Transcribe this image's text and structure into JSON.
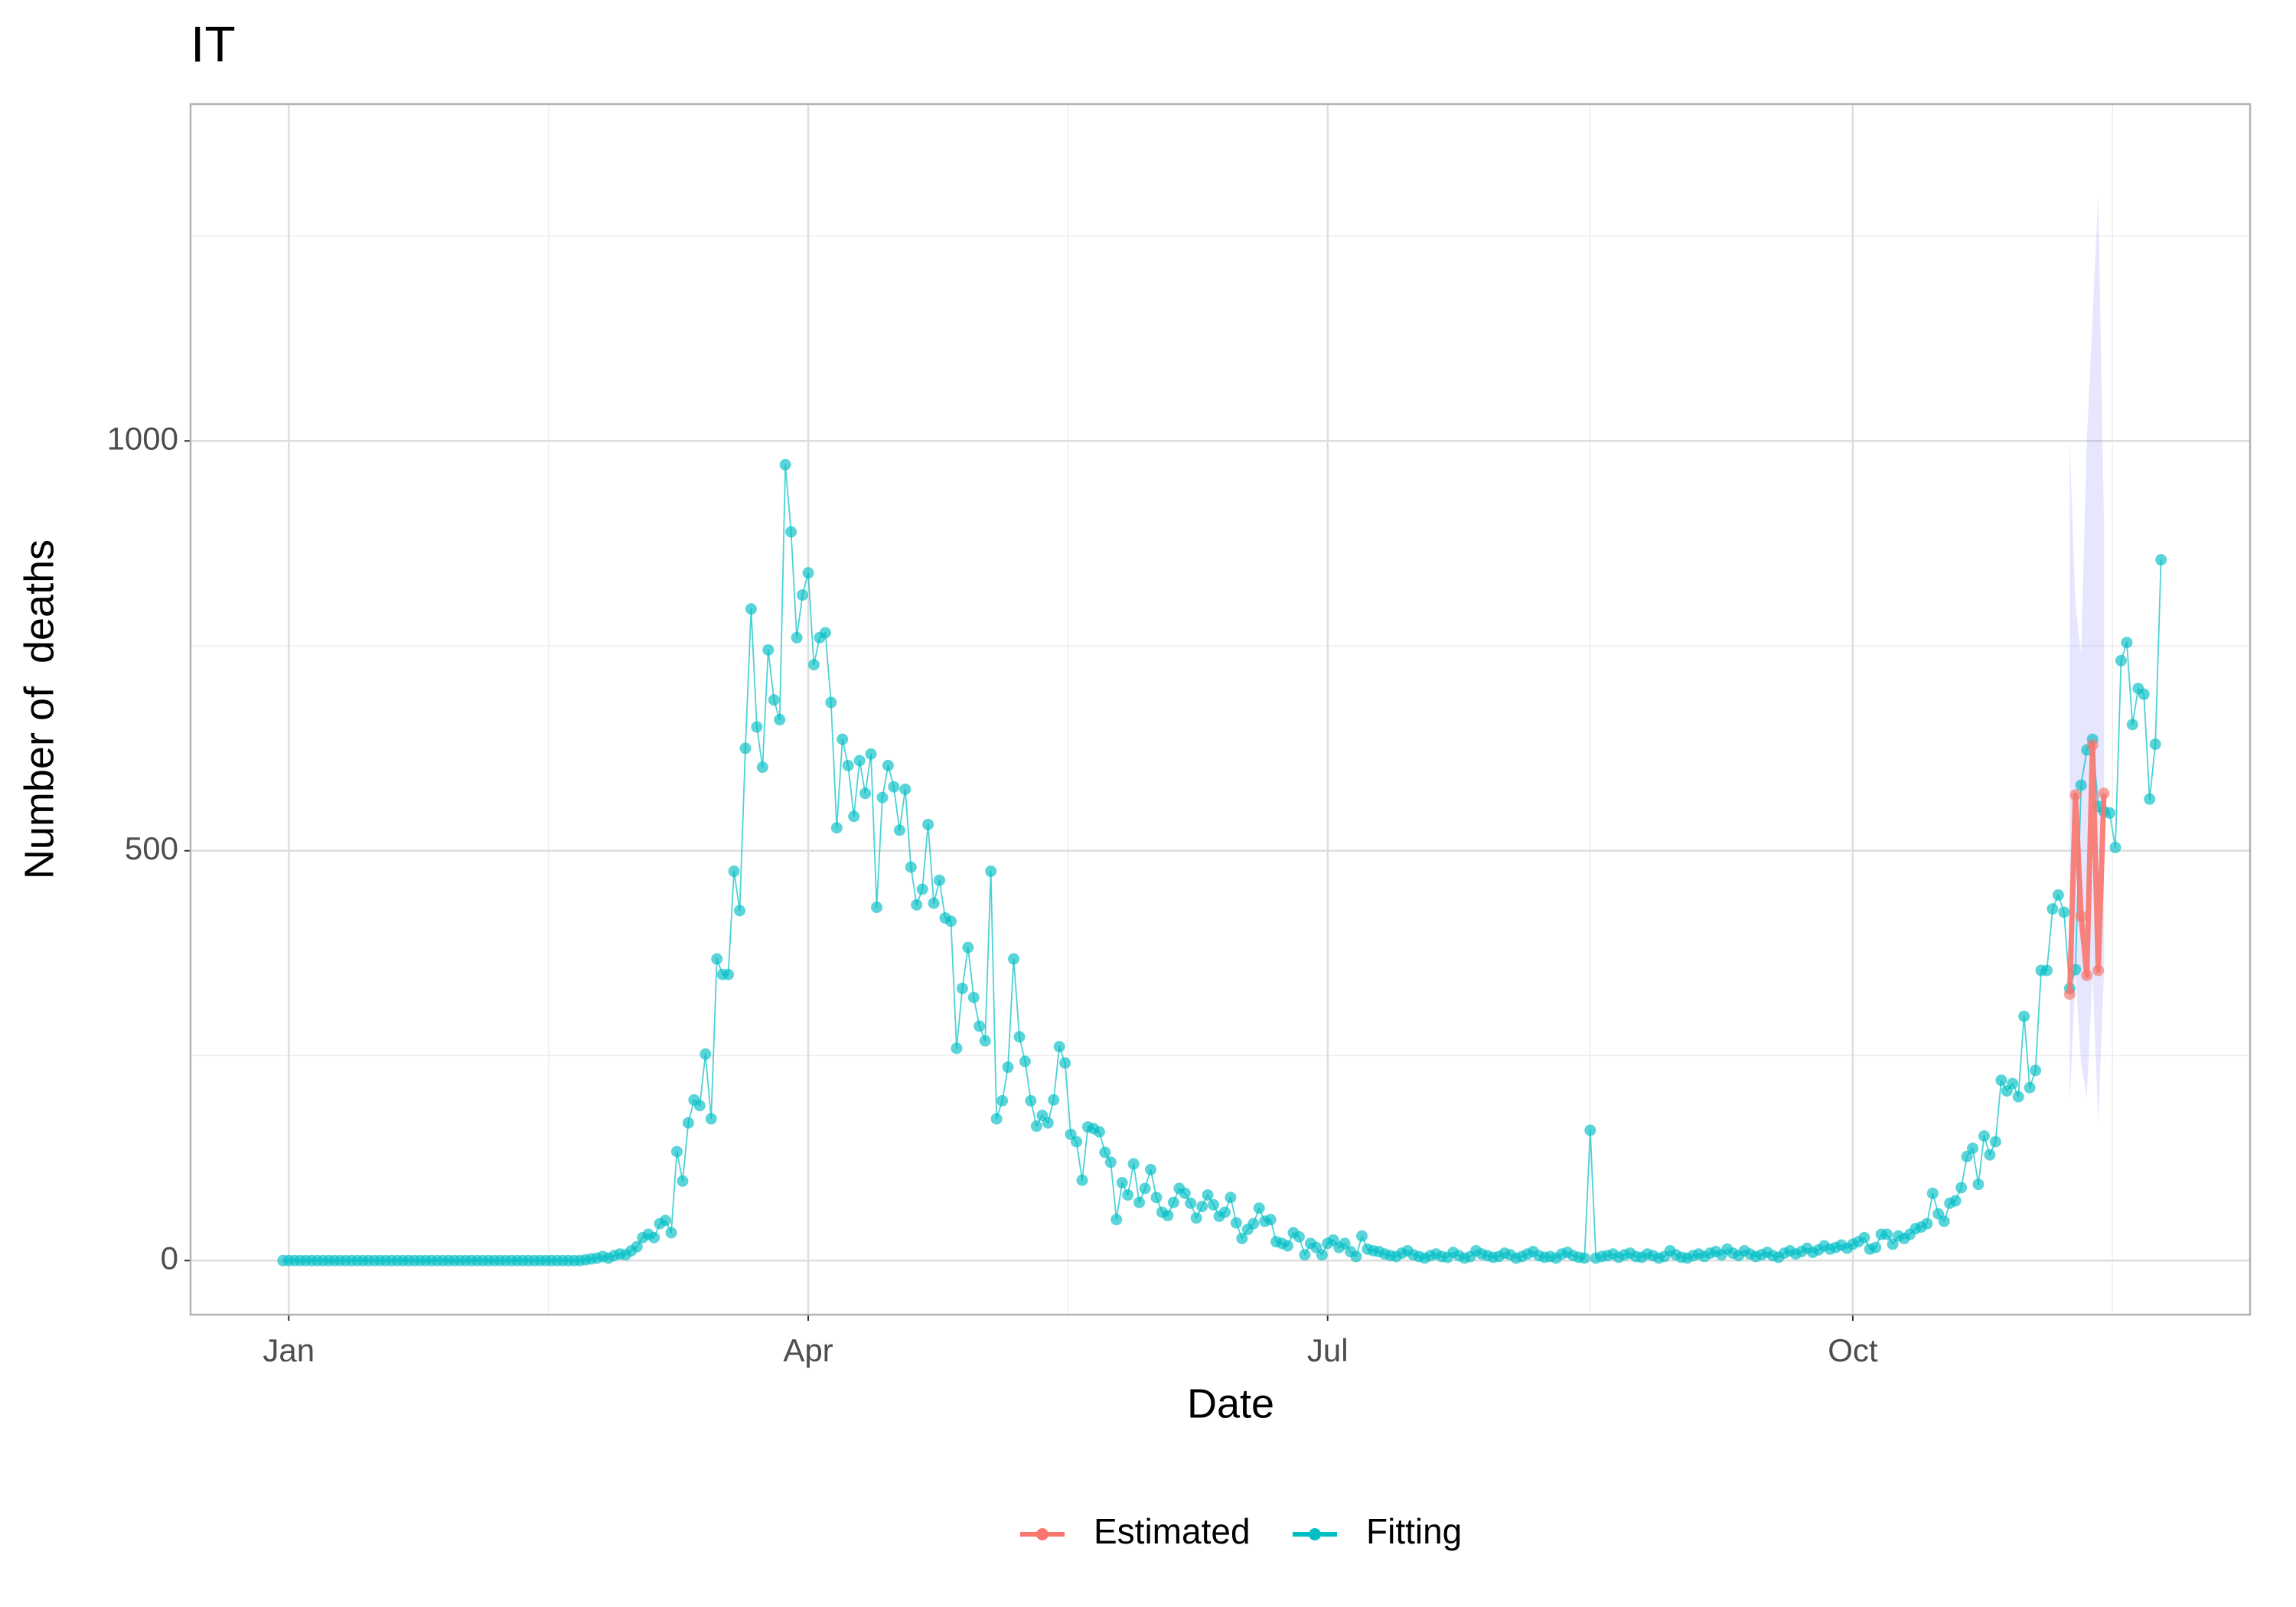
{
  "chart_data": {
    "type": "line",
    "title": "IT",
    "x_label": "Date",
    "y_label": "Number of  deaths",
    "xlim": [
      -17.2,
      343.6
    ],
    "ylim": [
      -66,
      1411
    ],
    "xticks": [
      {
        "value": 0,
        "label": "Jan"
      },
      {
        "value": 91,
        "label": "Apr"
      },
      {
        "value": 182,
        "label": "Jul"
      },
      {
        "value": 274,
        "label": "Oct"
      }
    ],
    "yticks": [
      0,
      500,
      1000
    ],
    "xminor": [
      45.5,
      136.5,
      228,
      319.5
    ],
    "yminor": [
      250,
      750,
      1250
    ],
    "grid": true,
    "legend": "bottom",
    "ribbon_color": "#8080ff",
    "series": [
      {
        "name": "Estimated",
        "color": "#F8766D",
        "x": [
          312,
          313,
          314,
          315,
          316,
          317,
          318
        ],
        "values": [
          325,
          568,
          420,
          348,
          629,
          354,
          570
        ],
        "lower": [
          190,
          350,
          240,
          200,
          350,
          170,
          350
        ],
        "upper": [
          1000,
          800,
          740,
          1000,
          1150,
          1300,
          900
        ]
      },
      {
        "name": "Fitting",
        "color": "#00BFC4",
        "x": [
          -1,
          0,
          1,
          2,
          3,
          4,
          5,
          6,
          7,
          8,
          9,
          10,
          11,
          12,
          13,
          14,
          15,
          16,
          17,
          18,
          19,
          20,
          21,
          22,
          23,
          24,
          25,
          26,
          27,
          28,
          29,
          30,
          31,
          32,
          33,
          34,
          35,
          36,
          37,
          38,
          39,
          40,
          41,
          42,
          43,
          44,
          45,
          46,
          47,
          48,
          49,
          50,
          51,
          52,
          53,
          54,
          55,
          56,
          57,
          58,
          59,
          60,
          61,
          62,
          63,
          64,
          65,
          66,
          67,
          68,
          69,
          70,
          71,
          72,
          73,
          74,
          75,
          76,
          77,
          78,
          79,
          80,
          81,
          82,
          83,
          84,
          85,
          86,
          87,
          88,
          89,
          90,
          91,
          92,
          93,
          94,
          95,
          96,
          97,
          98,
          99,
          100,
          101,
          102,
          103,
          104,
          105,
          106,
          107,
          108,
          109,
          110,
          111,
          112,
          113,
          114,
          115,
          116,
          117,
          118,
          119,
          120,
          121,
          122,
          123,
          124,
          125,
          126,
          127,
          128,
          129,
          130,
          131,
          132,
          133,
          134,
          135,
          136,
          137,
          138,
          139,
          140,
          141,
          142,
          143,
          144,
          145,
          146,
          147,
          148,
          149,
          150,
          151,
          152,
          153,
          154,
          155,
          156,
          157,
          158,
          159,
          160,
          161,
          162,
          163,
          164,
          165,
          166,
          167,
          168,
          169,
          170,
          171,
          172,
          173,
          174,
          175,
          176,
          177,
          178,
          179,
          180,
          181,
          182,
          183,
          184,
          185,
          186,
          187,
          188,
          189,
          190,
          191,
          192,
          193,
          194,
          195,
          196,
          197,
          198,
          199,
          200,
          201,
          202,
          203,
          204,
          205,
          206,
          207,
          208,
          209,
          210,
          211,
          212,
          213,
          214,
          215,
          216,
          217,
          218,
          219,
          220,
          221,
          222,
          223,
          224,
          225,
          226,
          227,
          228,
          229,
          230,
          231,
          232,
          233,
          234,
          235,
          236,
          237,
          238,
          239,
          240,
          241,
          242,
          243,
          244,
          245,
          246,
          247,
          248,
          249,
          250,
          251,
          252,
          253,
          254,
          255,
          256,
          257,
          258,
          259,
          260,
          261,
          262,
          263,
          264,
          265,
          266,
          267,
          268,
          269,
          270,
          271,
          272,
          273,
          274,
          275,
          276,
          277,
          278,
          279,
          280,
          281,
          282,
          283,
          284,
          285,
          286,
          287,
          288,
          289,
          290,
          291,
          292,
          293,
          294,
          295,
          296,
          297,
          298,
          299,
          300,
          301,
          302,
          303,
          304,
          305,
          306,
          307,
          308,
          309,
          310,
          311,
          312,
          313,
          314,
          315,
          316,
          317,
          318,
          319,
          320,
          321,
          322,
          323,
          324,
          325,
          326,
          327,
          328
        ],
        "values": [
          0,
          0,
          0,
          0,
          0,
          0,
          0,
          0,
          0,
          0,
          0,
          0,
          0,
          0,
          0,
          0,
          0,
          0,
          0,
          0,
          0,
          0,
          0,
          0,
          0,
          0,
          0,
          0,
          0,
          0,
          0,
          0,
          0,
          0,
          0,
          0,
          0,
          0,
          0,
          0,
          0,
          0,
          0,
          0,
          0,
          0,
          0,
          0,
          0,
          0,
          0,
          0,
          0,
          1,
          2,
          3,
          5,
          3,
          6,
          8,
          7,
          12,
          17,
          28,
          32,
          28,
          45,
          49,
          34,
          133,
          97,
          168,
          196,
          189,
          252,
          173,
          368,
          349,
          349,
          475,
          427,
          625,
          795,
          651,
          602,
          745,
          684,
          660,
          971,
          889,
          760,
          812,
          839,
          727,
          760,
          766,
          681,
          528,
          636,
          604,
          542,
          610,
          570,
          618,
          431,
          565,
          604,
          578,
          525,
          575,
          480,
          434,
          453,
          532,
          436,
          464,
          418,
          414,
          259,
          332,
          382,
          321,
          286,
          268,
          475,
          173,
          195,
          236,
          368,
          273,
          243,
          195,
          164,
          177,
          168,
          196,
          261,
          241,
          154,
          145,
          98,
          163,
          161,
          157,
          132,
          120,
          50,
          95,
          80,
          118,
          71,
          88,
          111,
          77,
          59,
          55,
          71,
          88,
          82,
          70,
          52,
          66,
          80,
          68,
          54,
          59,
          77,
          46,
          27,
          38,
          45,
          64,
          48,
          50,
          23,
          21,
          18,
          34,
          29,
          7,
          21,
          16,
          7,
          21,
          25,
          16,
          21,
          11,
          5,
          30,
          14,
          12,
          11,
          8,
          6,
          5,
          9,
          12,
          7,
          5,
          3,
          6,
          8,
          5,
          4,
          10,
          6,
          3,
          5,
          12,
          8,
          6,
          4,
          5,
          9,
          7,
          3,
          5,
          8,
          11,
          6,
          4,
          5,
          3,
          8,
          10,
          6,
          4,
          3,
          159,
          3,
          5,
          6,
          8,
          4,
          7,
          9,
          5,
          4,
          8,
          6,
          3,
          5,
          12,
          7,
          4,
          3,
          6,
          8,
          5,
          9,
          11,
          7,
          14,
          9,
          6,
          12,
          8,
          5,
          7,
          10,
          6,
          4,
          9,
          12,
          8,
          11,
          15,
          10,
          13,
          18,
          14,
          16,
          19,
          15,
          20,
          23,
          28,
          14,
          16,
          32,
          32,
          20,
          30,
          27,
          32,
          39,
          41,
          45,
          82,
          57,
          48,
          70,
          73,
          89,
          127,
          137,
          93,
          152,
          129,
          145,
          220,
          207,
          216,
          200,
          298,
          211,
          232,
          354,
          354,
          429,
          446,
          425,
          332,
          355,
          580,
          623,
          636,
          554,
          548,
          546,
          504,
          732,
          754,
          654,
          698,
          691,
          563,
          630,
          855
        ]
      }
    ]
  }
}
